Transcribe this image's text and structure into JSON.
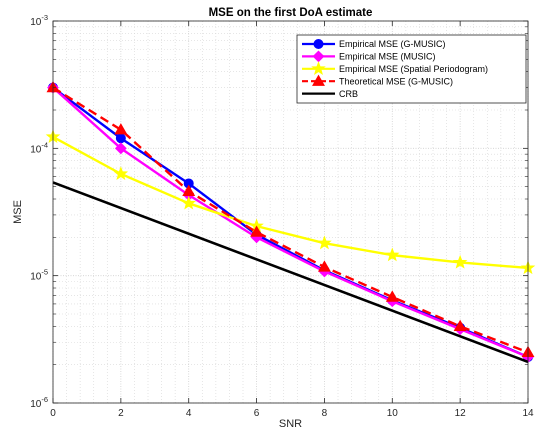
{
  "chart_data": {
    "type": "line",
    "title": "MSE on the first DoA estimate",
    "xlabel": "SNR",
    "ylabel": "MSE",
    "xlim": [
      0,
      14
    ],
    "ylim": [
      1e-06,
      0.001
    ],
    "yscale": "log",
    "grid": true,
    "minor_grid": true,
    "legend_position": "top-right",
    "x_ticks": [
      "0",
      "2",
      "4",
      "6",
      "8",
      "10",
      "12",
      "14"
    ],
    "y_ticks": [
      {
        "base": "10",
        "exp": "-6"
      },
      {
        "base": "10",
        "exp": "-5"
      },
      {
        "base": "10",
        "exp": "-4"
      },
      {
        "base": "10",
        "exp": "-3"
      }
    ],
    "series": [
      {
        "name": "Empirical MSE (G-MUSIC)",
        "color": "#0000ff",
        "marker": "circle",
        "dash": "solid",
        "x": [
          0,
          2,
          4,
          6,
          8,
          10,
          12,
          14
        ],
        "y": [
          0.0003,
          0.00012,
          5.3e-05,
          2.1e-05,
          1.1e-05,
          6.4e-06,
          3.9e-06,
          2.3e-06
        ]
      },
      {
        "name": "Empirical MSE (MUSIC)",
        "color": "#ff00ff",
        "marker": "diamond",
        "dash": "solid",
        "x": [
          0,
          2,
          4,
          6,
          8,
          10,
          12,
          14
        ],
        "y": [
          0.0003,
          0.0001,
          4.3e-05,
          2e-05,
          1.08e-05,
          6.3e-06,
          3.8e-06,
          2.3e-06
        ]
      },
      {
        "name": "Empirical MSE (Spatial Periodogram)",
        "color": "#ffff00",
        "marker": "star",
        "dash": "solid",
        "x": [
          0,
          2,
          4,
          6,
          8,
          10,
          12,
          14
        ],
        "y": [
          0.000123,
          6.3e-05,
          3.7e-05,
          2.45e-05,
          1.8e-05,
          1.45e-05,
          1.27e-05,
          1.15e-05
        ]
      },
      {
        "name": "Theoretical MSE (G-MUSIC)",
        "color": "#ff0000",
        "marker": "triangle",
        "dash": "dashed",
        "x": [
          0,
          2,
          4,
          6,
          8,
          10,
          12,
          14
        ],
        "y": [
          0.0003,
          0.00014,
          4.6e-05,
          2.2e-05,
          1.17e-05,
          6.8e-06,
          4e-06,
          2.5e-06
        ]
      },
      {
        "name": "CRB",
        "color": "#000000",
        "marker": "none",
        "dash": "solid",
        "x": [
          0,
          14
        ],
        "y": [
          5.4e-05,
          2.1e-06
        ]
      }
    ]
  }
}
